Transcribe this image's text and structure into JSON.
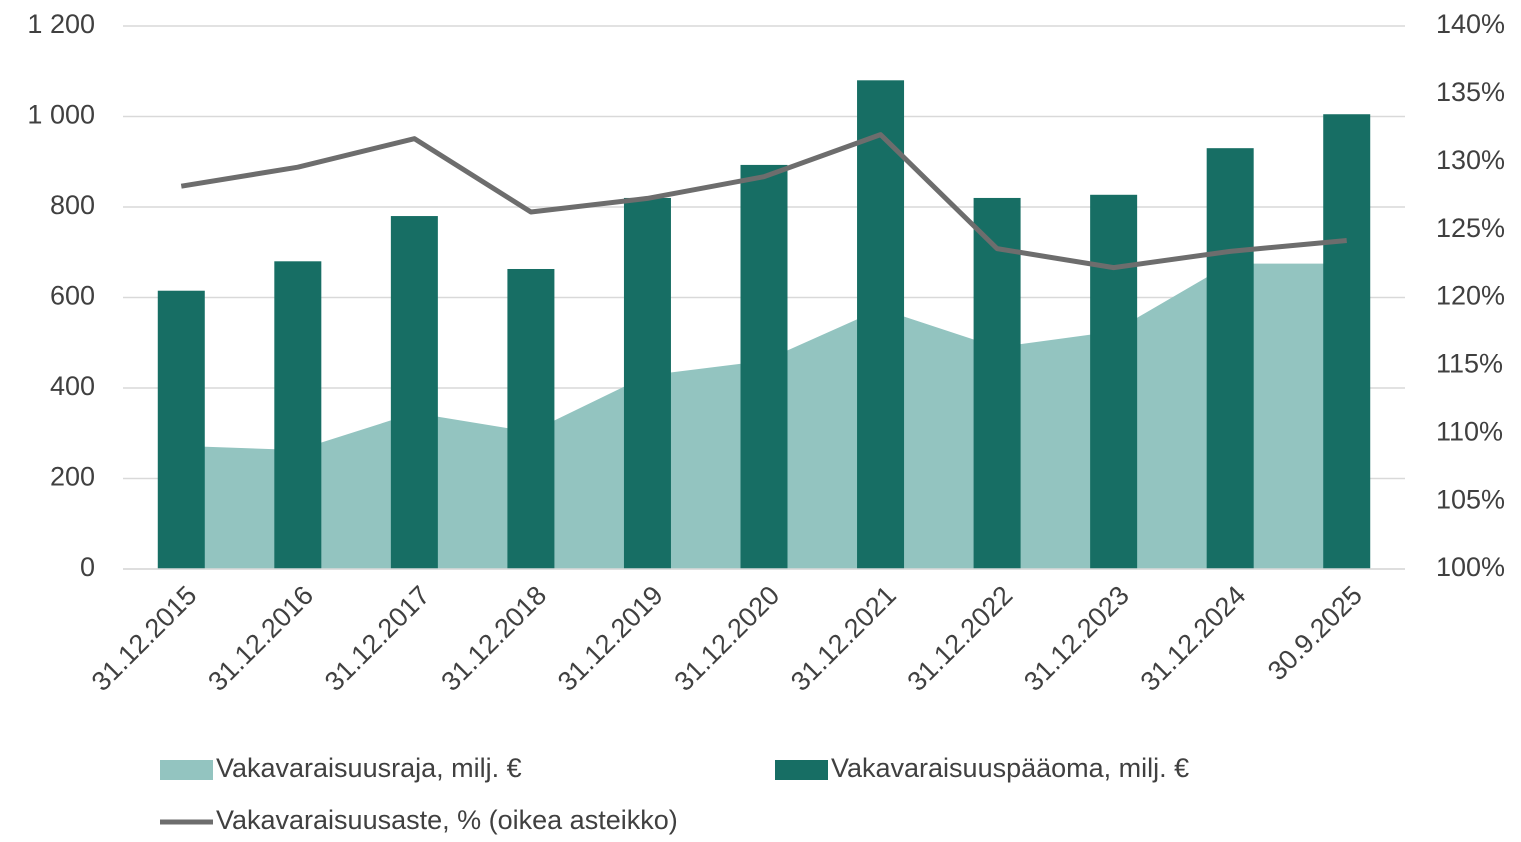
{
  "chart_data": {
    "type": "combo",
    "categories": [
      "31.12.2015",
      "31.12.2016",
      "31.12.2017",
      "31.12.2018",
      "31.12.2019",
      "31.12.2020",
      "31.12.2021",
      "31.12.2022",
      "31.12.2023",
      "31.12.2024",
      "30.9.2025"
    ],
    "series": [
      {
        "name": "Vakavaraisuusraja, milj. €",
        "type": "area",
        "color": "#93c4c0",
        "values": [
          272,
          263,
          345,
          303,
          428,
          460,
          575,
          490,
          525,
          675,
          675
        ]
      },
      {
        "name": "Vakavaraisuuspääoma, milj. €",
        "type": "bar",
        "color": "#176e64",
        "values": [
          615,
          680,
          780,
          663,
          820,
          893,
          1080,
          820,
          827,
          930,
          1005
        ]
      },
      {
        "name": "Vakavaraisuusaste, % (oikea asteikko)",
        "type": "line",
        "axis": "y2",
        "color": "#6d6d6d",
        "values": [
          128.2,
          129.6,
          131.7,
          126.3,
          127.3,
          128.9,
          132.0,
          123.6,
          122.2,
          123.4,
          124.2
        ]
      }
    ],
    "ylim": [
      0,
      1200
    ],
    "yticks": [
      0,
      200,
      400,
      600,
      800,
      {
        "value": 1000,
        "label": "1 000"
      },
      {
        "value": 1200,
        "label": "1 200"
      }
    ],
    "y2lim": [
      100,
      140
    ],
    "y2ticks": [
      {
        "value": 100,
        "label": "100%"
      },
      {
        "value": 105,
        "label": "105%"
      },
      {
        "value": 110,
        "label": "110%"
      },
      {
        "value": 115,
        "label": "115%"
      },
      {
        "value": 120,
        "label": "120%"
      },
      {
        "value": 125,
        "label": "125%"
      },
      {
        "value": 130,
        "label": "130%"
      },
      {
        "value": 135,
        "label": "135%"
      },
      {
        "value": 140,
        "label": "140%"
      }
    ],
    "grid": true
  }
}
